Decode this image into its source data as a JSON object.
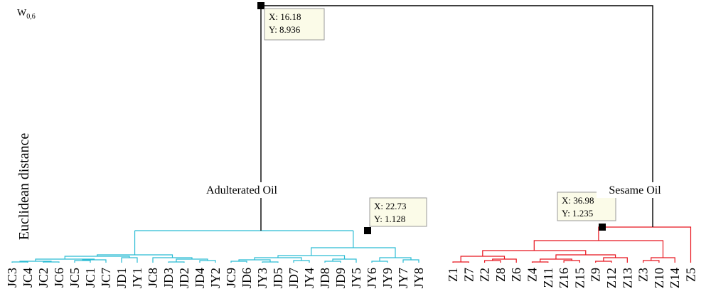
{
  "chart_data": {
    "type": "dendrogram",
    "ylabel": "Euclidean distance",
    "corner_label": {
      "main": "W",
      "sub": "0,6"
    },
    "colors": {
      "adulterated": "#2bbcd4",
      "sesame": "#e8141e",
      "root": "#000000"
    },
    "leaves": [
      "JC3",
      "JC4",
      "JC2",
      "JC6",
      "JC5",
      "JC1",
      "JC7",
      "JD1",
      "JY1",
      "JC8",
      "JD3",
      "JD2",
      "JD4",
      "JY2",
      "JC9",
      "JD6",
      "JY3",
      "JD5",
      "JD7",
      "JY4",
      "JD8",
      "JD9",
      "JY5",
      "JY6",
      "JY9",
      "JY7",
      "JY8",
      "Z1",
      "Z7",
      "Z2",
      "Z8",
      "Z6",
      "Z4",
      "Z11",
      "Z16",
      "Z15",
      "Z9",
      "Z12",
      "Z13",
      "Z3",
      "Z10",
      "Z14",
      "Z5"
    ],
    "cluster_labels": [
      {
        "id": "adulterated",
        "text": "Adulterated Oil"
      },
      {
        "id": "sesame",
        "text": "Sesame Oil"
      }
    ],
    "datatips": [
      {
        "id": "root",
        "x_label": "X: 16.18",
        "y_label": "Y: 8.936",
        "x": 16.18,
        "y": 8.936
      },
      {
        "id": "adulterated",
        "x_label": "X: 22.73",
        "y_label": "Y: 1.128",
        "x": 22.73,
        "y": 1.128
      },
      {
        "id": "sesame",
        "x_label": "X: 36.98",
        "y_label": "Y: 1.235",
        "x": 36.98,
        "y": 1.235
      }
    ],
    "merge_heights": {
      "root": 8.936,
      "adulterated": 1.128,
      "sesame": 1.235
    }
  }
}
